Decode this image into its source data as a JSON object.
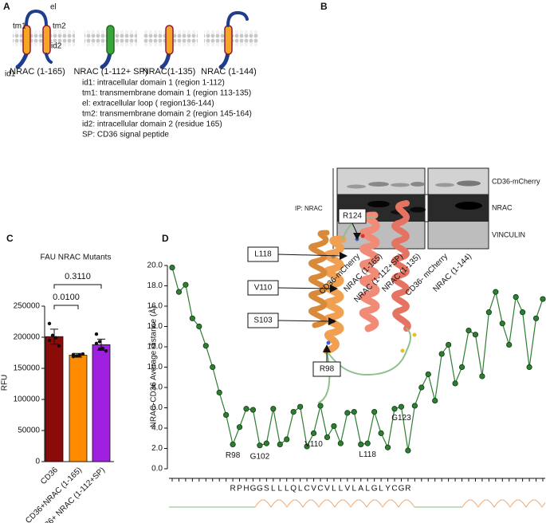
{
  "panel_labels": [
    "A",
    "B",
    "C",
    "D"
  ],
  "panel_a": {
    "topology_labels": [
      "el",
      "tm1",
      "tm2",
      "id1",
      "id2"
    ],
    "constructs": [
      "NRAC (1-165)",
      "NRAC (1-112+ SP)",
      "NRAC(1-135)",
      "NRAC (1-144)"
    ],
    "legend": [
      "id1: intracellular domain 1 (region 1-112)",
      "tm1: transmembrane domain 1 (region 113-135)",
      "el: extracellular loop ( region136-144)",
      "tm2: transmembrane domain 2 (region 145-164)",
      "id2: intracellular domain 2 (residue 165)",
      "SP:  CD36 signal peptide"
    ]
  },
  "panel_b": {
    "ip_label": "IP: NRAC",
    "rows": [
      "CD36-mCherry",
      "NRAC",
      "VINCULIN"
    ],
    "lanes": [
      "CD36-mCherry",
      "NRAC (1-165)",
      "NRAC (1-112+SP)",
      "NRAC (1-135)",
      "CD36- mCherry",
      "NRAC (1-144)"
    ]
  },
  "structure_labels": [
    "R124",
    "L118",
    "V110",
    "S103",
    "R98"
  ],
  "chart_data": [
    {
      "type": "bar",
      "title": "FAU NRAC Mutants",
      "y_label": "RFU",
      "categories": [
        "CD36",
        "CD36+NRAC (1-165)",
        "CD36+ NRAC (1-112+SP)"
      ],
      "values": [
        201000,
        171000,
        188000
      ],
      "errors": [
        12000,
        3000,
        9000
      ],
      "points": [
        [
          222000,
          203000,
          199000,
          186000,
          195000
        ],
        [
          172000,
          170000,
          171000,
          173000,
          169000
        ],
        [
          205000,
          193000,
          182000,
          178000,
          190000,
          181000
        ]
      ],
      "colors": [
        "#8b0a0a",
        "#ff8c00",
        "#a020e0"
      ],
      "ylim": [
        0,
        250000
      ],
      "yticks": [
        0,
        50000,
        100000,
        150000,
        200000,
        250000
      ],
      "annotations": [
        "0.0100",
        "0.3110"
      ]
    },
    {
      "type": "line",
      "y_label": "NRAC-CD36 Average distance (Å)",
      "categories": [
        null,
        null,
        null,
        null,
        null,
        null,
        null,
        null,
        null,
        "R",
        "P",
        "H",
        "G",
        "G",
        "S",
        "L",
        "L",
        "L",
        "Q",
        "L",
        "C",
        "V",
        "C",
        "V",
        "L",
        "L",
        "V",
        "L",
        "A",
        "L",
        "G",
        "L",
        "Y",
        "C",
        "G",
        "R",
        null,
        null,
        null,
        null,
        null,
        null,
        null,
        null,
        null,
        null,
        null,
        null,
        null,
        null,
        null,
        null,
        null,
        null,
        null,
        null
      ],
      "values": [
        19.8,
        17.4,
        18.1,
        14.8,
        14.0,
        12.1,
        10.0,
        7.5,
        5.3,
        2.4,
        4.1,
        5.9,
        5.8,
        2.3,
        2.5,
        5.9,
        2.4,
        2.9,
        5.6,
        6.1,
        2.2,
        3.5,
        6.2,
        3.1,
        4.2,
        2.5,
        5.5,
        5.6,
        2.4,
        2.5,
        5.6,
        3.5,
        2.1,
        5.9,
        6.1,
        1.8,
        6.2,
        8.0,
        9.3,
        6.7,
        11.3,
        12.2,
        8.4,
        10.0,
        13.6,
        13.2,
        9.1,
        15.4,
        17.4,
        14.3,
        12.2,
        16.9,
        15.4,
        10.0,
        14.8,
        16.7
      ],
      "point_labels": [
        null,
        null,
        null,
        null,
        null,
        null,
        null,
        null,
        null,
        "R98",
        null,
        null,
        null,
        "G102",
        null,
        null,
        null,
        null,
        null,
        null,
        null,
        "V110",
        null,
        null,
        null,
        null,
        null,
        null,
        null,
        "L118",
        null,
        null,
        null,
        null,
        "G123",
        null,
        null,
        null,
        null,
        null,
        null,
        null,
        null,
        null,
        null,
        null,
        null,
        null,
        null,
        null,
        null,
        null,
        null,
        null,
        null,
        null
      ],
      "color": "#2e7d32",
      "ylim": [
        0,
        20
      ],
      "yticks": [
        {
          "value": 0,
          "label": "0.0"
        },
        {
          "value": 2,
          "label": "2.0"
        },
        {
          "value": 4,
          "label": "4.0"
        },
        {
          "value": 6,
          "label": "6.0"
        },
        {
          "value": 8,
          "label": "8.0"
        },
        {
          "value": 10,
          "label": "10.0"
        },
        {
          "value": 12,
          "label": "12.0"
        },
        {
          "value": 14,
          "label": "14.0"
        },
        {
          "value": 16,
          "label": "16.0"
        },
        {
          "value": 18,
          "label": "18.0"
        },
        {
          "value": 20,
          "label": "20.0"
        }
      ]
    }
  ]
}
